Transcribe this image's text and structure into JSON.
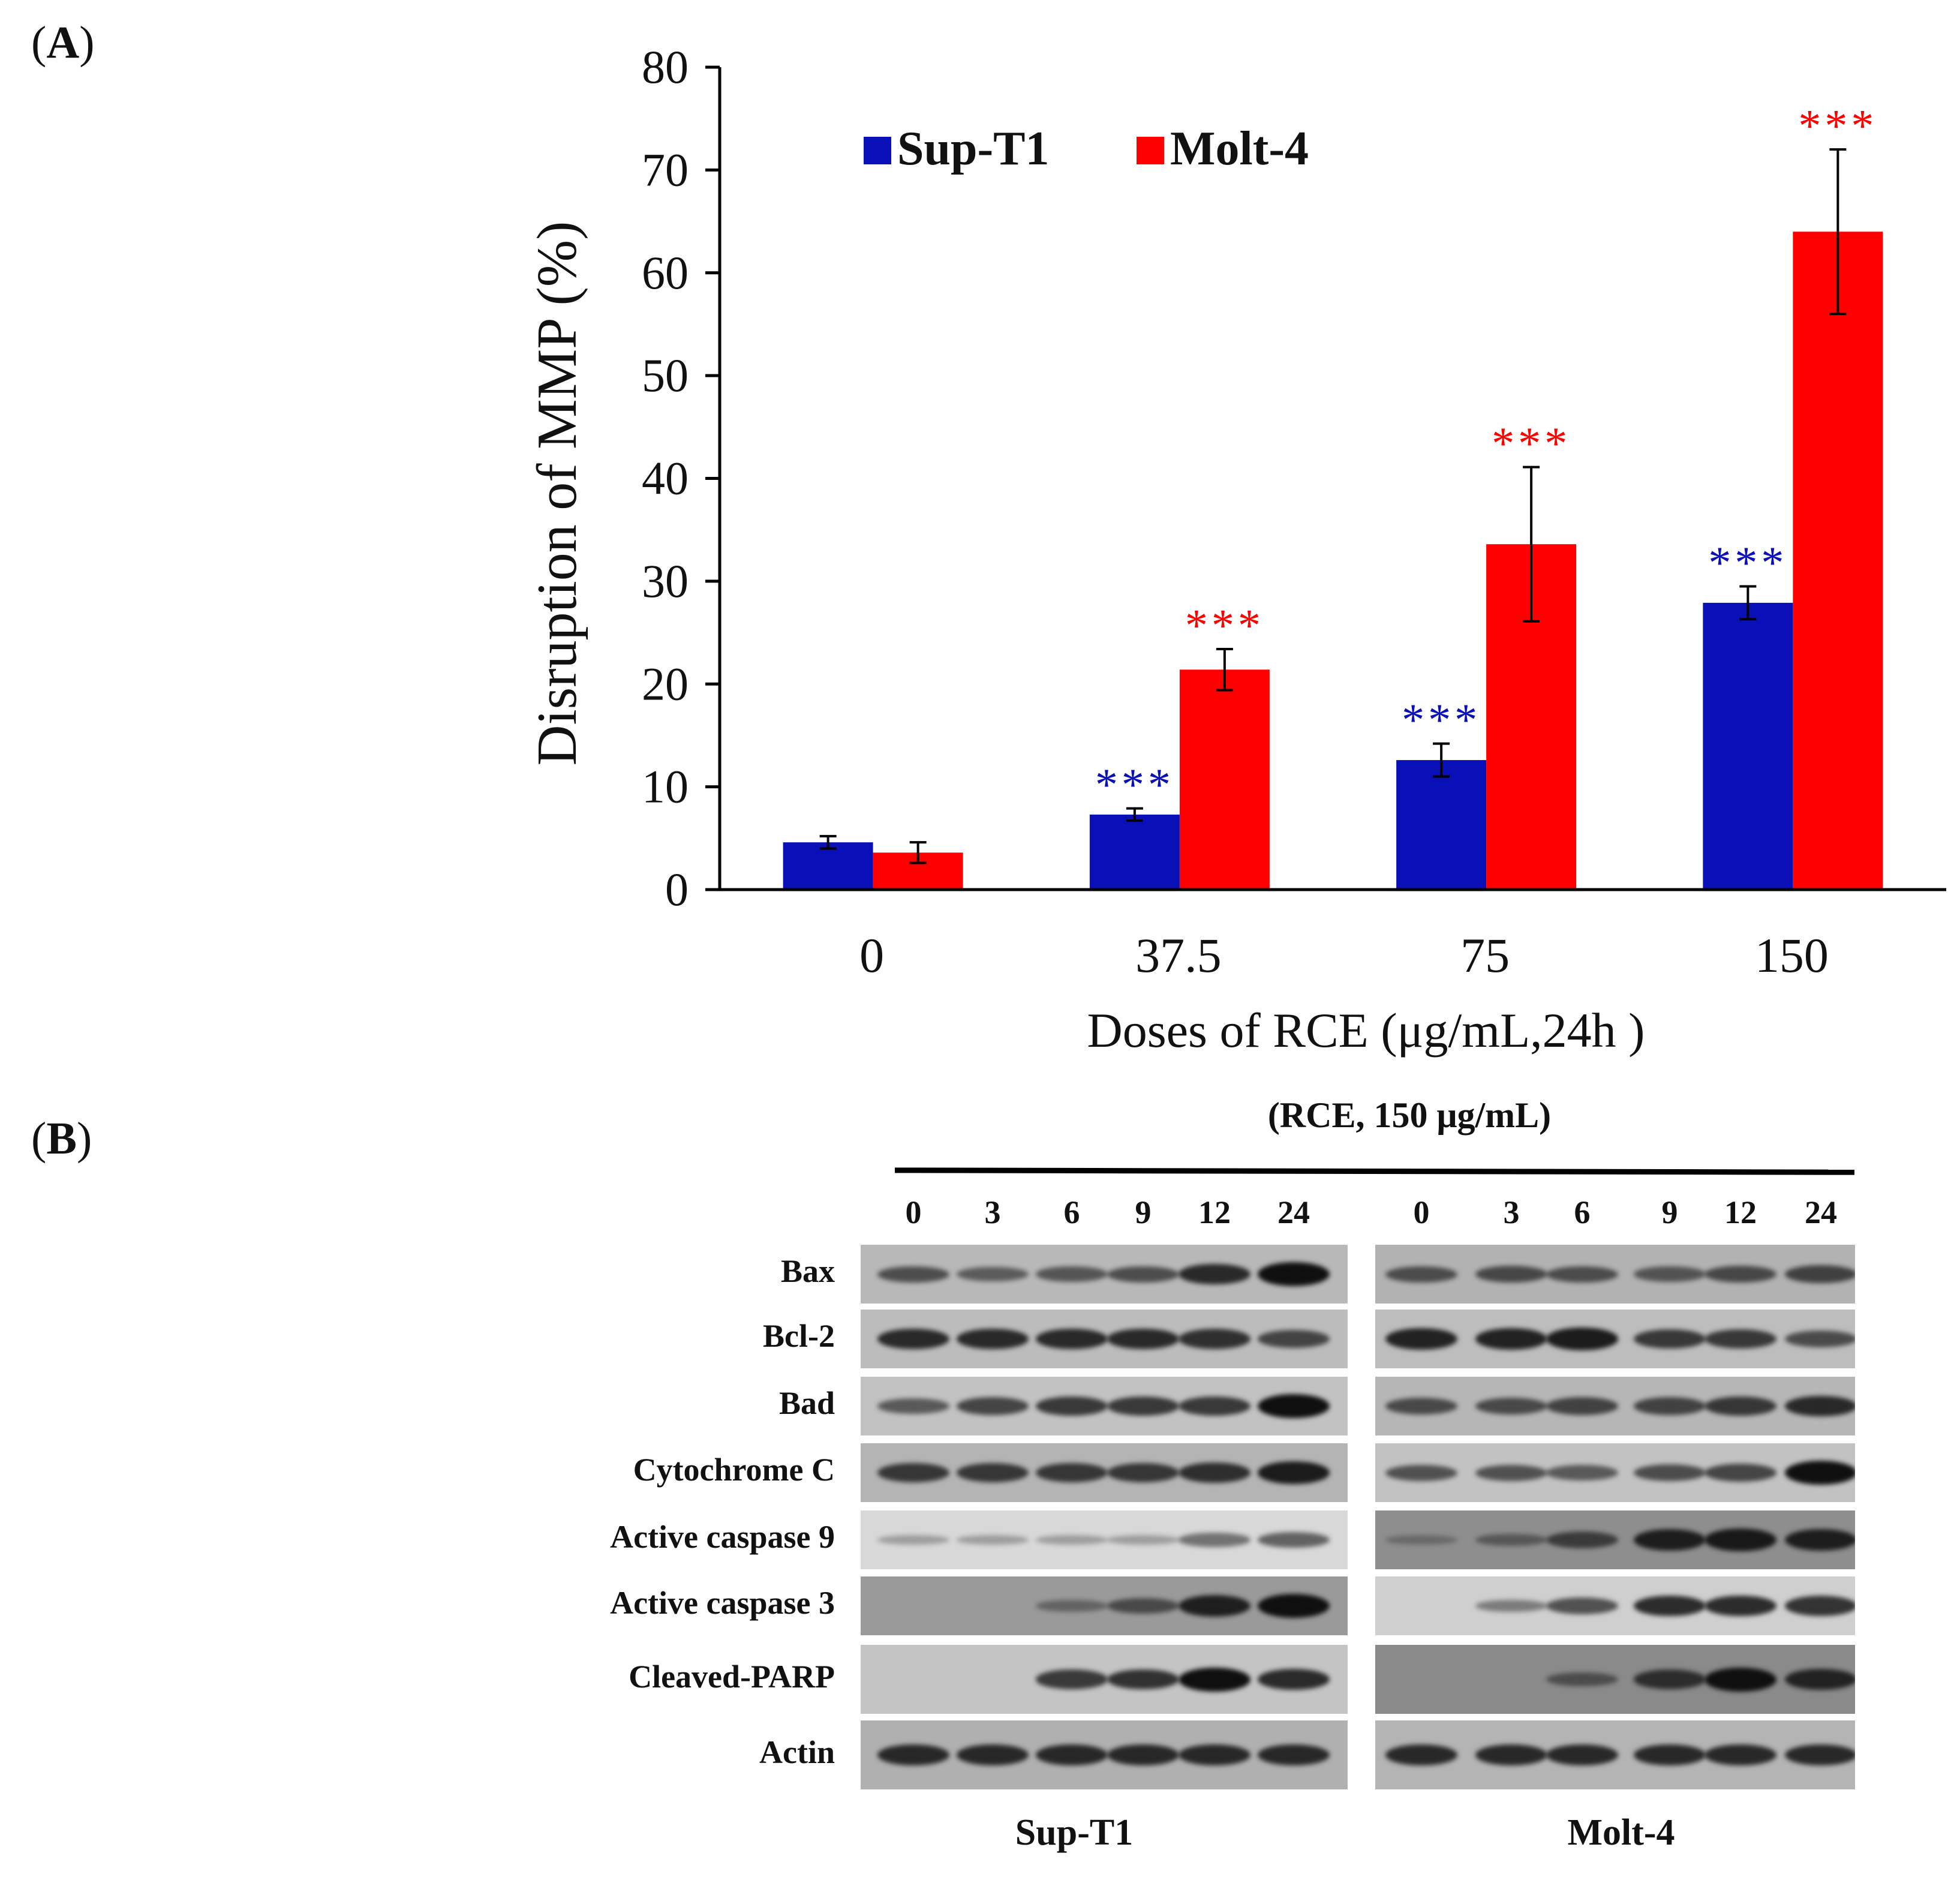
{
  "panels": {
    "a": "A",
    "b": "B"
  },
  "chart_data": {
    "type": "bar",
    "categories": [
      "0",
      "37.5",
      "75",
      "150"
    ],
    "series": [
      {
        "name": "Sup-T1",
        "color": "#0a10b8",
        "values": [
          4.6,
          7.3,
          12.6,
          27.9
        ],
        "errors": [
          0.6,
          0.6,
          1.6,
          1.6
        ],
        "significance": [
          "",
          "***",
          "***",
          "***"
        ]
      },
      {
        "name": "Molt-4",
        "color": "#ff0000",
        "values": [
          3.6,
          21.4,
          33.6,
          64.0
        ],
        "errors": [
          1.0,
          2.0,
          7.5,
          8.0
        ],
        "significance": [
          "",
          "***",
          "***",
          "***"
        ]
      }
    ],
    "xlabel": "Doses of  RCE (μg/mL,24h )",
    "ylabel": "Disruption of MMP (%)",
    "ylim": [
      0,
      80
    ],
    "yticks": [
      "0",
      "10",
      "20",
      "30",
      "40",
      "50",
      "60",
      "70",
      "80"
    ],
    "legend_position": "top-left"
  },
  "western": {
    "condition": "(RCE, 150 μg/mL)",
    "time_points": [
      "0",
      "3",
      "6",
      "9",
      "12",
      "24"
    ],
    "groups": [
      "Sup-T1",
      "Molt-4"
    ],
    "proteins": [
      "Bax",
      "Bcl-2",
      "Bad",
      "Cytochrome C",
      "Active caspase 9",
      "Active caspase 3",
      "Cleaved-PARP",
      "Actin"
    ],
    "intensities": {
      "Sup-T1": [
        [
          0.5,
          0.4,
          0.45,
          0.5,
          0.8,
          1.0
        ],
        [
          0.8,
          0.8,
          0.8,
          0.8,
          0.75,
          0.6
        ],
        [
          0.45,
          0.6,
          0.7,
          0.7,
          0.7,
          1.0
        ],
        [
          0.7,
          0.7,
          0.7,
          0.7,
          0.75,
          0.9
        ],
        [
          0.05,
          0.05,
          0.05,
          0.05,
          0.35,
          0.45
        ],
        [
          0.0,
          0.0,
          0.2,
          0.45,
          0.85,
          1.0
        ],
        [
          0.0,
          0.0,
          0.7,
          0.75,
          1.0,
          0.8
        ],
        [
          0.8,
          0.8,
          0.8,
          0.8,
          0.8,
          0.8
        ]
      ],
      "Molt-4": [
        [
          0.5,
          0.55,
          0.5,
          0.45,
          0.55,
          0.6
        ],
        [
          0.85,
          0.85,
          0.9,
          0.7,
          0.7,
          0.55
        ],
        [
          0.55,
          0.55,
          0.6,
          0.6,
          0.7,
          0.8
        ],
        [
          0.5,
          0.5,
          0.45,
          0.55,
          0.6,
          1.0
        ],
        [
          0.05,
          0.25,
          0.55,
          0.85,
          0.9,
          0.85
        ],
        [
          0.0,
          0.25,
          0.55,
          0.8,
          0.8,
          0.75
        ],
        [
          0.0,
          0.0,
          0.35,
          0.7,
          1.0,
          0.8
        ],
        [
          0.8,
          0.8,
          0.8,
          0.8,
          0.8,
          0.8
        ]
      ]
    }
  }
}
